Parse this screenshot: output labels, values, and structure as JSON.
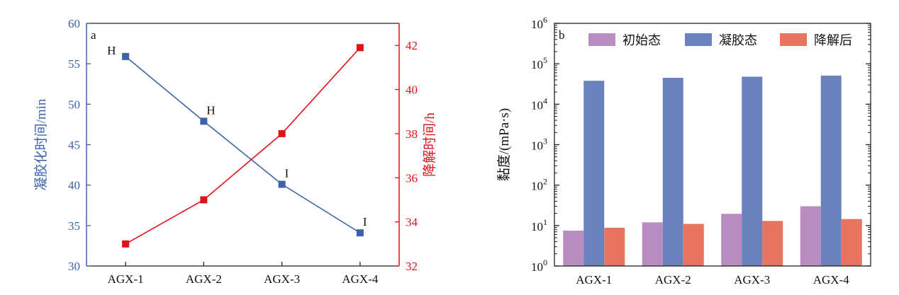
{
  "chart_data": [
    {
      "panel": "a",
      "type": "line",
      "categories": [
        "AGX-1",
        "AGX-2",
        "AGX-3",
        "AGX-4"
      ],
      "ylabel": "凝胶化时间/min",
      "ylim": [
        30,
        60
      ],
      "yticks": [
        30,
        35,
        40,
        45,
        50,
        55,
        60
      ],
      "y2label": "降解时间/h",
      "y2lim": [
        32,
        43
      ],
      "y2ticks": [
        32,
        34,
        36,
        38,
        40,
        42
      ],
      "series": [
        {
          "axis": "left",
          "color": "#3d62a8",
          "marker": "square",
          "values": [
            55.9,
            47.9,
            40.1,
            34.1
          ],
          "point_labels": [
            "H",
            "H",
            "I",
            "I"
          ]
        },
        {
          "axis": "right",
          "color": "#e0121b",
          "marker": "square",
          "values": [
            33.0,
            35.0,
            38.0,
            41.9
          ]
        }
      ],
      "axis_colors": {
        "left": "#3d62a8",
        "right": "#e0121b"
      }
    },
    {
      "panel": "b",
      "type": "bar",
      "categories": [
        "AGX-1",
        "AGX-2",
        "AGX-3",
        "AGX-4"
      ],
      "ylabel": "黏度/(mPa·s)",
      "yscale": "log",
      "ylim": [
        1,
        1000000
      ],
      "ytick_base": "10",
      "ytick_exponents": [
        "0",
        "1",
        "2",
        "3",
        "4",
        "5",
        "6"
      ],
      "legend_position": "top",
      "series": [
        {
          "name": "初始态",
          "color": "#b98cc2",
          "values": [
            7.5,
            12,
            19.5,
            30
          ]
        },
        {
          "name": "凝胶态",
          "color": "#6a82bb",
          "values": [
            38000,
            45000,
            48000,
            51000
          ]
        },
        {
          "name": "降解后",
          "color": "#e8735f",
          "values": [
            8.8,
            11,
            13,
            14.5
          ]
        }
      ]
    }
  ]
}
